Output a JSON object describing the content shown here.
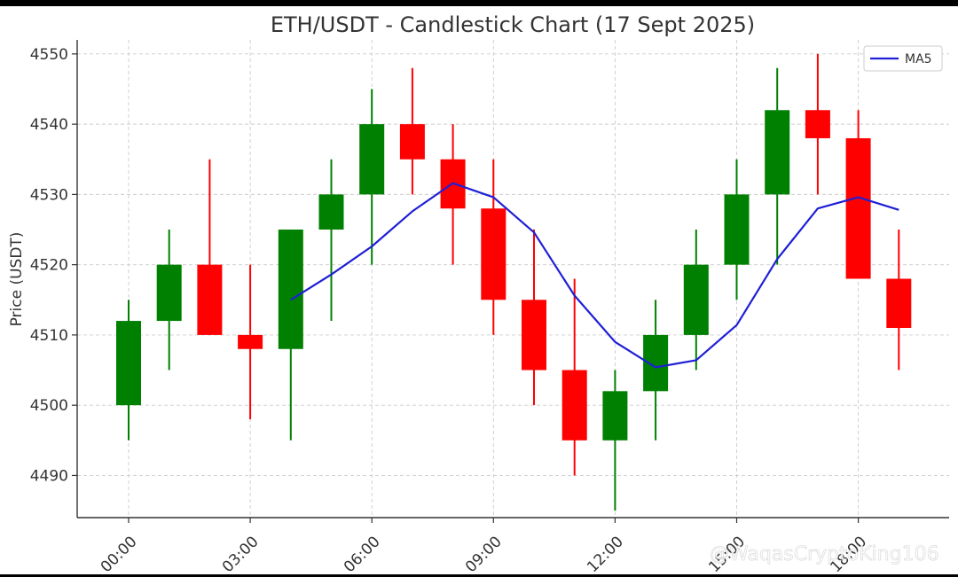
{
  "chart_data": {
    "type": "candlestick",
    "title": "ETH/USDT - Candlestick Chart (17 Sept 2025)",
    "xlabel": "",
    "ylabel": "Price (USDT)",
    "ylim": [
      4484,
      4552
    ],
    "yticks": [
      4490,
      4500,
      4510,
      4520,
      4530,
      4540,
      4550
    ],
    "xticks": [
      "00:00",
      "03:00",
      "06:00",
      "09:00",
      "12:00",
      "15:00",
      "18:00"
    ],
    "grid": true,
    "legend": {
      "position": "top-right",
      "entries": [
        "MA5"
      ]
    },
    "colors": {
      "up": "#008000",
      "down": "#ff0000",
      "ma": "#1f1fd6"
    },
    "candles": [
      {
        "time": "00:00",
        "open": 4500,
        "high": 4515,
        "low": 4495,
        "close": 4512
      },
      {
        "time": "01:00",
        "open": 4512,
        "high": 4525,
        "low": 4505,
        "close": 4520
      },
      {
        "time": "02:00",
        "open": 4520,
        "high": 4535,
        "low": 4510,
        "close": 4510
      },
      {
        "time": "03:00",
        "open": 4510,
        "high": 4520,
        "low": 4498,
        "close": 4508
      },
      {
        "time": "04:00",
        "open": 4508,
        "high": 4525,
        "low": 4495,
        "close": 4525
      },
      {
        "time": "05:00",
        "open": 4525,
        "high": 4535,
        "low": 4512,
        "close": 4530
      },
      {
        "time": "06:00",
        "open": 4530,
        "high": 4545,
        "low": 4520,
        "close": 4540
      },
      {
        "time": "07:00",
        "open": 4540,
        "high": 4548,
        "low": 4530,
        "close": 4535
      },
      {
        "time": "08:00",
        "open": 4535,
        "high": 4540,
        "low": 4520,
        "close": 4528
      },
      {
        "time": "09:00",
        "open": 4528,
        "high": 4535,
        "low": 4510,
        "close": 4515
      },
      {
        "time": "10:00",
        "open": 4515,
        "high": 4525,
        "low": 4500,
        "close": 4505
      },
      {
        "time": "11:00",
        "open": 4505,
        "high": 4518,
        "low": 4490,
        "close": 4495
      },
      {
        "time": "12:00",
        "open": 4495,
        "high": 4505,
        "low": 4485,
        "close": 4502
      },
      {
        "time": "13:00",
        "open": 4502,
        "high": 4515,
        "low": 4495,
        "close": 4510
      },
      {
        "time": "14:00",
        "open": 4510,
        "high": 4525,
        "low": 4505,
        "close": 4520
      },
      {
        "time": "15:00",
        "open": 4520,
        "high": 4535,
        "low": 4515,
        "close": 4530
      },
      {
        "time": "16:00",
        "open": 4530,
        "high": 4548,
        "low": 4520,
        "close": 4542
      },
      {
        "time": "17:00",
        "open": 4542,
        "high": 4550,
        "low": 4530,
        "close": 4538
      },
      {
        "time": "18:00",
        "open": 4538,
        "high": 4542,
        "low": 4518,
        "close": 4518
      },
      {
        "time": "19:00",
        "open": 4518,
        "high": 4525,
        "low": 4505,
        "close": 4511
      }
    ],
    "series": [
      {
        "name": "MA5",
        "values": [
          null,
          null,
          null,
          null,
          4515,
          4518.6,
          4522.6,
          4527.6,
          4531.6,
          4529.6,
          4524.6,
          4515.6,
          4509,
          4505.4,
          4506.4,
          4511.4,
          4520.8,
          4528,
          4529.6,
          4527.8
        ]
      }
    ]
  },
  "watermark": "@WaqasCryptoKing106"
}
